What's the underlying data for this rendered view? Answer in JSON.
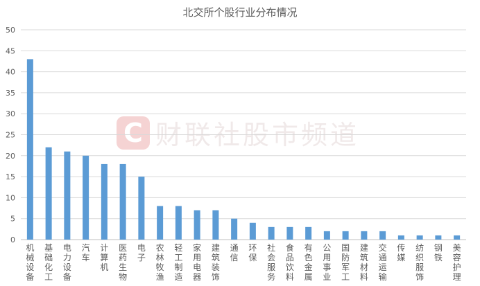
{
  "watermark": {
    "logo_letter": "C",
    "text": "财联社股市频道"
  },
  "chart_data": {
    "type": "bar",
    "title": "北交所个股行业分布情况",
    "xlabel": "",
    "ylabel": "",
    "ylim": [
      0,
      50
    ],
    "yticks": [
      0,
      5,
      10,
      15,
      20,
      25,
      30,
      35,
      40,
      45,
      50
    ],
    "grid": true,
    "bar_color": "#5b9bd5",
    "categories": [
      "机械设备",
      "基础化工",
      "电力设备",
      "汽车",
      "计算机",
      "医药生物",
      "电子",
      "农林牧渔",
      "轻工制造",
      "家用电器",
      "建筑装饰",
      "通信",
      "环保",
      "社会服务",
      "食品饮料",
      "有色金属",
      "公用事业",
      "国防军工",
      "建筑材料",
      "交通运输",
      "传媒",
      "纺织服饰",
      "钢铁",
      "美容护理"
    ],
    "values": [
      43,
      22,
      21,
      20,
      18,
      18,
      15,
      8,
      8,
      7,
      7,
      5,
      4,
      3,
      3,
      3,
      2,
      2,
      2,
      2,
      1,
      1,
      1,
      1
    ]
  }
}
